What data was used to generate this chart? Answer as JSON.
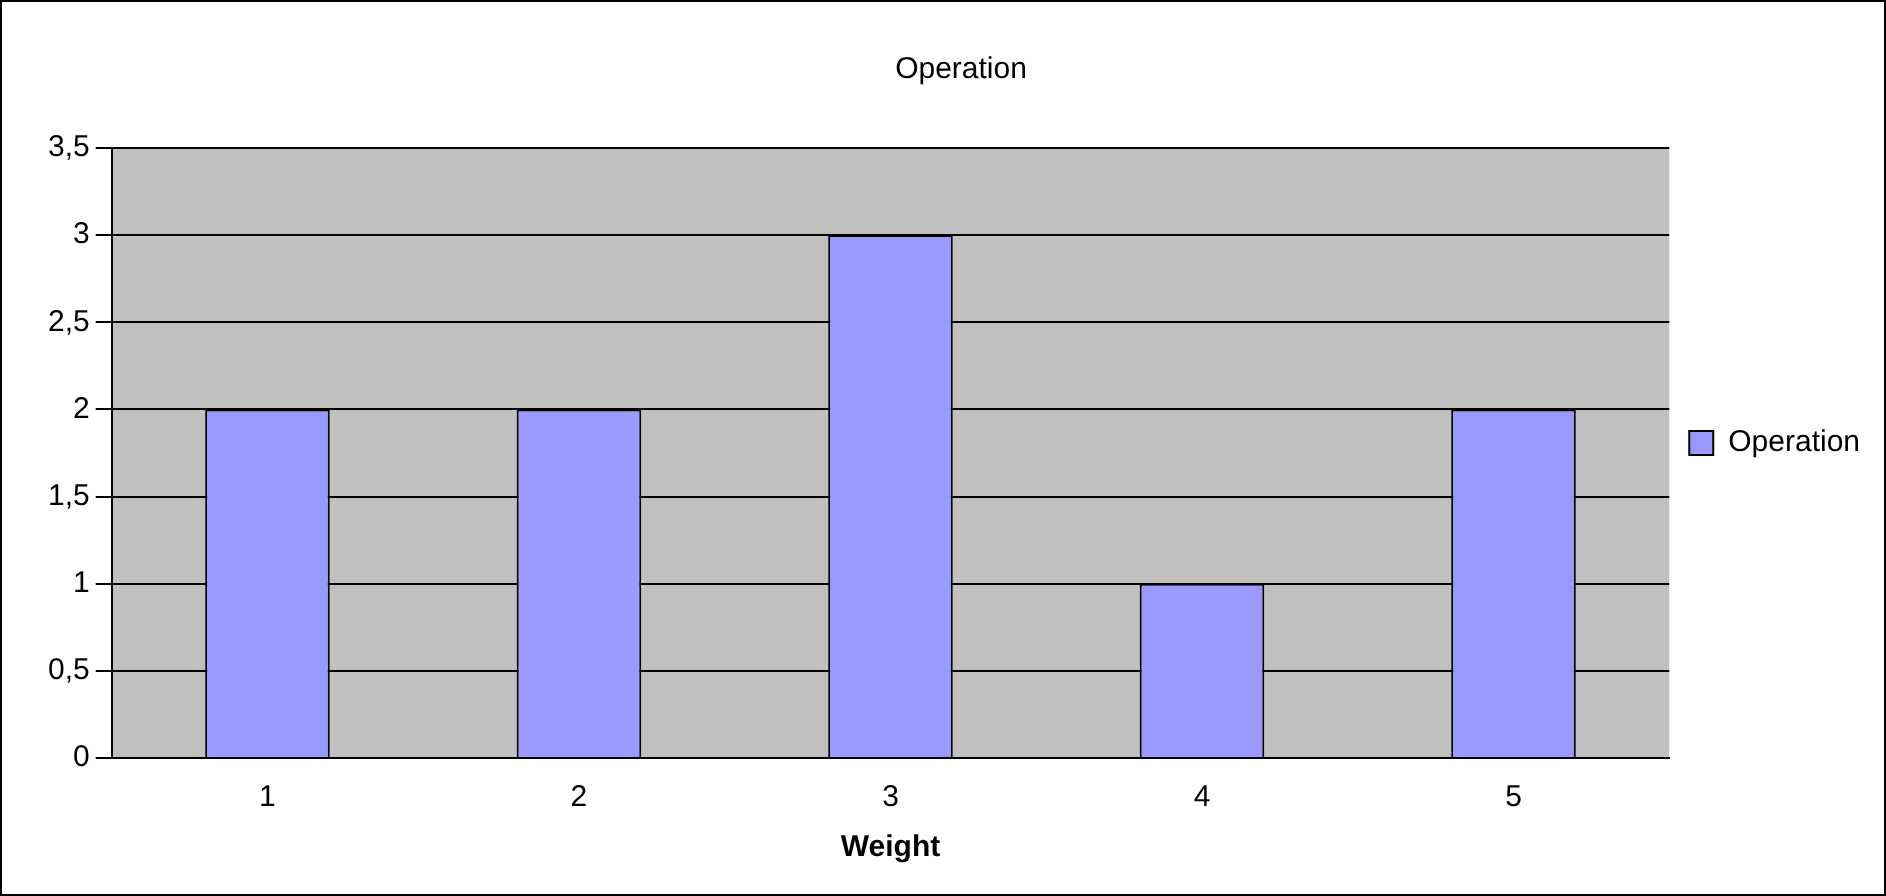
{
  "chart_data": {
    "type": "bar",
    "title": "Operation",
    "xlabel": "Weight",
    "categories": [
      "1",
      "2",
      "3",
      "4",
      "5"
    ],
    "series": [
      {
        "name": "Operation",
        "color": "#9999ff",
        "values": [
          2,
          2,
          3,
          1,
          2
        ]
      }
    ],
    "ylim": [
      0,
      3.5
    ],
    "yticks": [
      0,
      {
        "value": 0.5,
        "label": "0,5"
      },
      1,
      {
        "value": 1.5,
        "label": "1,5"
      },
      2,
      {
        "value": 2.5,
        "label": "2,5"
      },
      3,
      {
        "value": 3.5,
        "label": "3,5"
      }
    ],
    "grid": "y",
    "legend": "right"
  }
}
